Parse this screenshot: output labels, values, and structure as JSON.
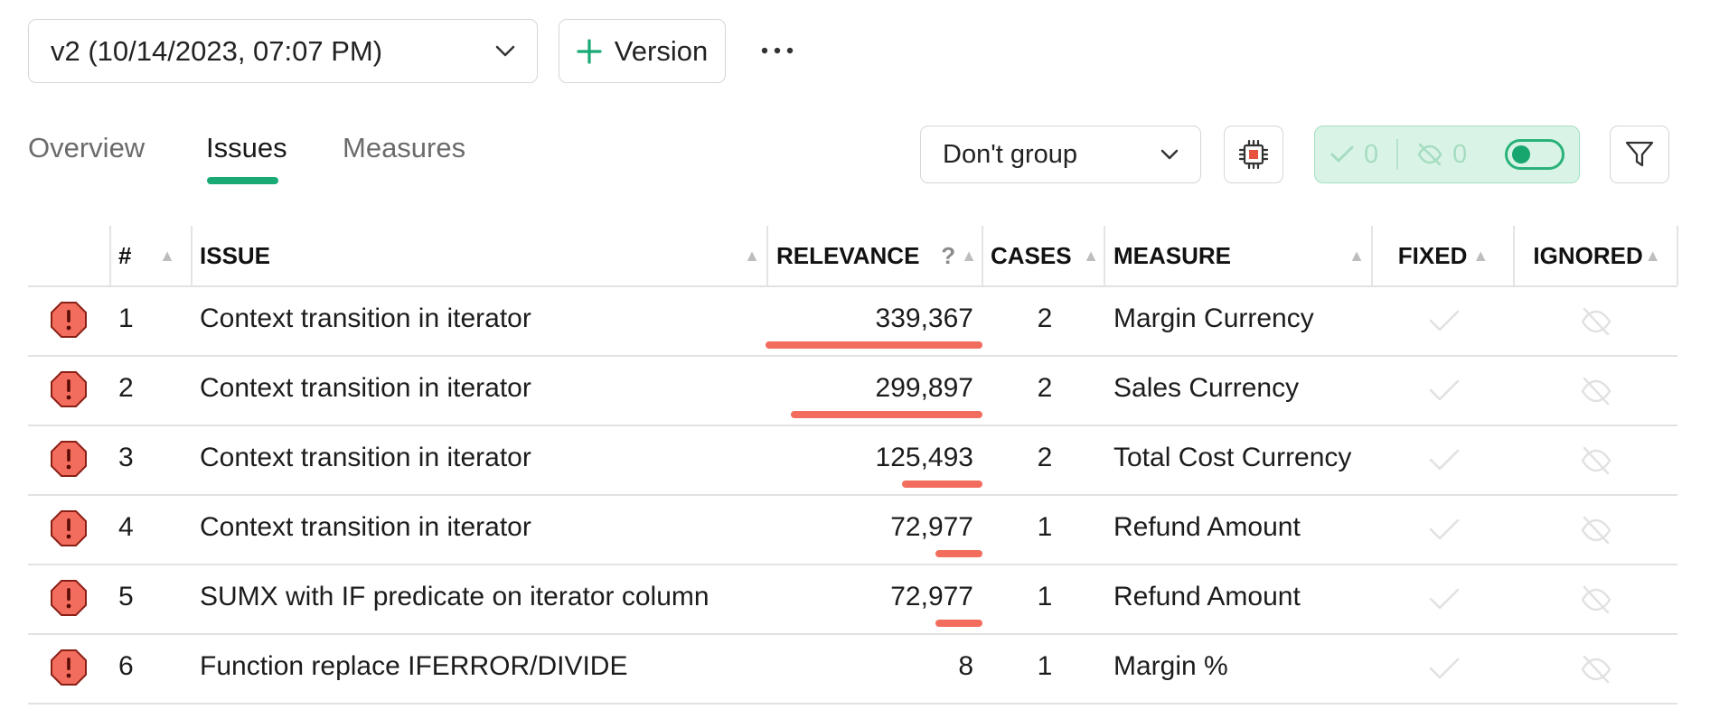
{
  "toolbar": {
    "version_label": "v2 (10/14/2023, 07:07 PM)",
    "add_version_label": "Version",
    "more_label": "···"
  },
  "tabs": [
    {
      "label": "Overview",
      "active": false
    },
    {
      "label": "Issues",
      "active": true
    },
    {
      "label": "Measures",
      "active": false
    }
  ],
  "controls": {
    "group_by_value": "Don't group",
    "fixed_count": "0",
    "ignored_count": "0",
    "accent_color": "#19a974",
    "severity_color": "#f26d5d"
  },
  "table": {
    "headers": {
      "num": "#",
      "issue": "ISSUE",
      "relevance": "RELEVANCE",
      "relevance_help": "?",
      "cases": "CASES",
      "measure": "MEASURE",
      "fixed": "FIXED",
      "ignored": "IGNORED"
    },
    "max_relevance": 339367,
    "rows": [
      {
        "num": "1",
        "issue": "Context transition in iterator",
        "relevance": "339,367",
        "relevance_value": 339367,
        "cases": "2",
        "measure": "Margin Currency"
      },
      {
        "num": "2",
        "issue": "Context transition in iterator",
        "relevance": "299,897",
        "relevance_value": 299897,
        "cases": "2",
        "measure": "Sales Currency"
      },
      {
        "num": "3",
        "issue": "Context transition in iterator",
        "relevance": "125,493",
        "relevance_value": 125493,
        "cases": "2",
        "measure": "Total Cost Currency"
      },
      {
        "num": "4",
        "issue": "Context transition in iterator",
        "relevance": "72,977",
        "relevance_value": 72977,
        "cases": "1",
        "measure": "Refund Amount"
      },
      {
        "num": "5",
        "issue": "SUMX with IF predicate on iterator column",
        "relevance": "72,977",
        "relevance_value": 72977,
        "cases": "1",
        "measure": "Refund Amount"
      },
      {
        "num": "6",
        "issue": "Function replace IFERROR/DIVIDE",
        "relevance": "8",
        "relevance_value": 8,
        "cases": "1",
        "measure": "Margin %"
      }
    ]
  }
}
